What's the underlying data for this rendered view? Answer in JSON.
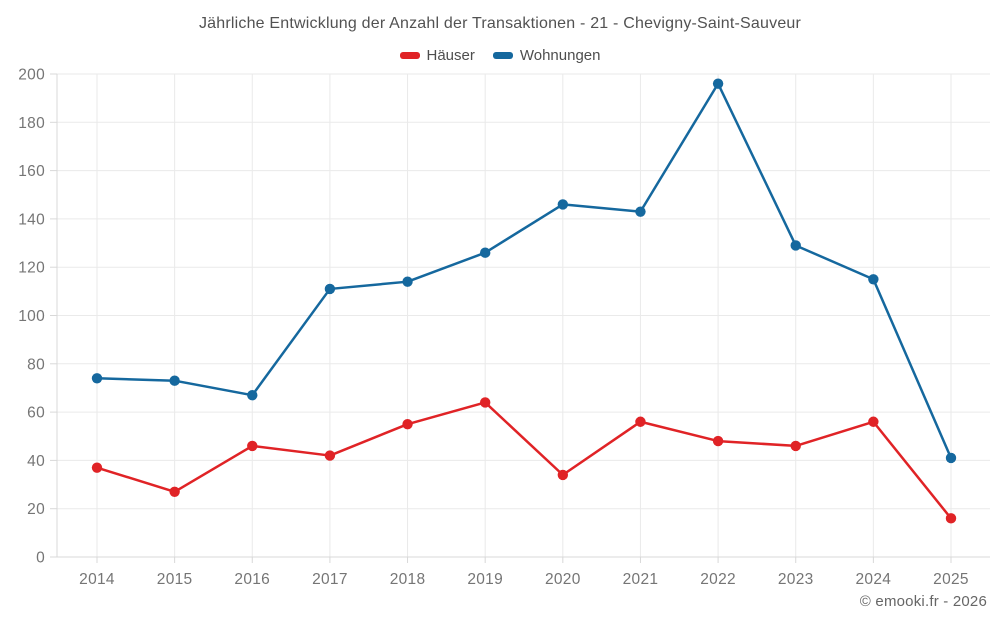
{
  "page": {
    "copyright": "© emooki.fr - 2026"
  },
  "chart_data": {
    "type": "line",
    "title": "Jährliche Entwicklung der Anzahl der Transaktionen - 21 - Chevigny-Saint-Sauveur",
    "categories": [
      "2014",
      "2015",
      "2016",
      "2017",
      "2018",
      "2019",
      "2020",
      "2021",
      "2022",
      "2023",
      "2024",
      "2025"
    ],
    "series": [
      {
        "name": "Häuser",
        "color": "#e02326",
        "values": [
          37,
          27,
          46,
          42,
          55,
          64,
          34,
          56,
          48,
          46,
          56,
          16
        ]
      },
      {
        "name": "Wohnungen",
        "color": "#15689e",
        "values": [
          74,
          73,
          67,
          111,
          114,
          126,
          146,
          143,
          196,
          129,
          115,
          41
        ]
      }
    ],
    "ylim": [
      0,
      200
    ],
    "ytick_step": 20,
    "grid": true,
    "legend_position": "top",
    "colors": {
      "gridline": "#eaeaea",
      "axis": "#d8d8d8",
      "tick_label": "#757575"
    }
  }
}
